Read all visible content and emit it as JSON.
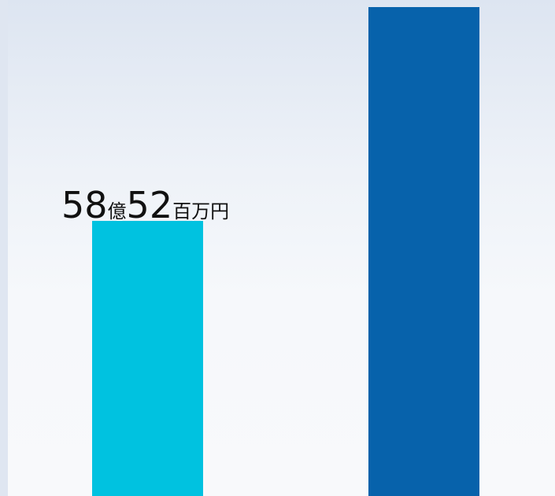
{
  "chart_data": {
    "type": "bar",
    "categories": [
      "",
      ""
    ],
    "values": [
      58.52,
      104.0
    ],
    "ylim": [
      0,
      105
    ],
    "colors": [
      "#00c2e0",
      "#0762ab"
    ],
    "data_labels": [
      {
        "parts": [
          {
            "text": "58",
            "size": "big"
          },
          {
            "text": "億",
            "size": "small"
          },
          {
            "text": "52",
            "size": "big"
          },
          {
            "text": "百万円",
            "size": "small"
          }
        ]
      },
      null
    ],
    "title": "",
    "xlabel": "",
    "ylabel": "",
    "grid": false,
    "legend": "none"
  }
}
